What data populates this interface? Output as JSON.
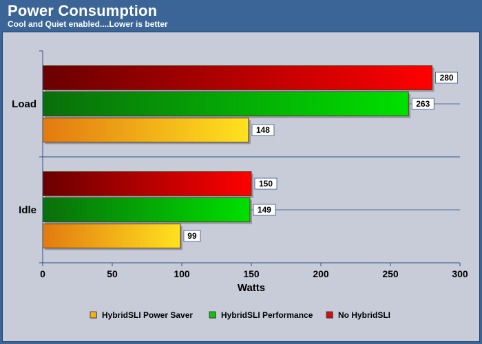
{
  "header": {
    "title": "Power Consumption",
    "subtitle": "Cool and Quiet enabled....Lower is better"
  },
  "chart_data": {
    "type": "bar",
    "orientation": "horizontal",
    "title": "Power Consumption",
    "subtitle": "Cool and Quiet enabled....Lower is better",
    "categories": [
      "Load",
      "Idle"
    ],
    "series": [
      {
        "name": "HybridSLI Power Saver",
        "values": [
          148,
          99
        ],
        "color": "#f0c020"
      },
      {
        "name": "HybridSLI Performance",
        "values": [
          263,
          149
        ],
        "color": "#10b010"
      },
      {
        "name": "No HybridSLI",
        "values": [
          280,
          150
        ],
        "color": "#d01010"
      }
    ],
    "xlabel": "Watts",
    "ylabel": "",
    "xlim": [
      0,
      300
    ],
    "x_ticks": [
      0,
      50,
      100,
      150,
      200,
      250,
      300
    ],
    "legend_position": "bottom",
    "grid": "horizontal lines at category centers"
  },
  "colors": {
    "header_background": "#3a6596",
    "plot_background": "#c8ccd9",
    "axis": "#2c4f86"
  }
}
